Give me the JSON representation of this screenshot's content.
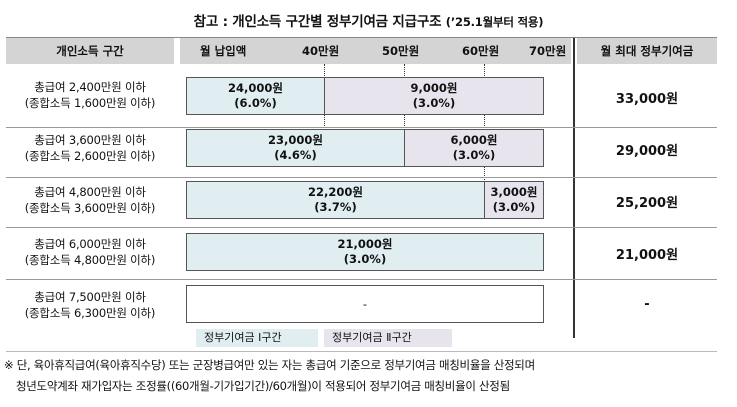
{
  "title": "참고 : 개인소득 구간별 정부기여금 지급구조",
  "title_suffix": "(’25.1월부터 적용)",
  "header": {
    "income_bracket": "개인소득 구간",
    "monthly_payment": "월 납입액",
    "tick_40": "40만원",
    "tick_50": "50만원",
    "tick_60": "60만원",
    "tick_70": "70만원",
    "max_contribution": "월 최대 정부기여금"
  },
  "rows": [
    {
      "gross": "총급여 2,400만원 이하",
      "comprehensive": "(종합소득 1,600만원 이하)",
      "zone1_amount": "24,000원",
      "zone1_rate": "(6.0%)",
      "zone2_amount": "9,000원",
      "zone2_rate": "(3.0%)",
      "total": "33,000원"
    },
    {
      "gross": "총급여 3,600만원 이하",
      "comprehensive": "(종합소득 2,600만원 이하)",
      "zone1_amount": "23,000원",
      "zone1_rate": "(4.6%)",
      "zone2_amount": "6,000원",
      "zone2_rate": "(3.0%)",
      "total": "29,000원"
    },
    {
      "gross": "총급여 4,800만원 이하",
      "comprehensive": "(종합소득 3,600만원 이하)",
      "zone1_amount": "22,200원",
      "zone1_rate": "(3.7%)",
      "zone2_amount": "3,000원",
      "zone2_rate": "(3.0%)",
      "total": "25,200원"
    },
    {
      "gross": "총급여 6,000만원 이하",
      "comprehensive": "(종합소득 4,800만원 이하)",
      "zone1_amount": "21,000원",
      "zone1_rate": "(3.0%)",
      "total": "21,000원"
    },
    {
      "gross": "총급여 7,500만원 이하",
      "comprehensive": "(종합소득 6,300만원 이하)",
      "zone1_amount": "-",
      "total": "-"
    }
  ],
  "legend": {
    "zone1": "정부기여금 Ⅰ구간",
    "zone2": "정부기여금 Ⅱ구간"
  },
  "notes": {
    "line1": "※ 단, 육아휴직급여(육아휴직수당) 또는 군장병급여만 있는 자는 총급여 기준으로 정부기여금 매칭비율을 산정되며",
    "line2": "청년도약계좌 재가입자는 조정률((60개월-기가입기간)/60개월)이 적용되어 정부기여금 매칭비율이 산정됨"
  },
  "colors": {
    "zone1": "#e0eef2",
    "zone2": "#e8e4ee",
    "header": "#d4d4d4"
  }
}
